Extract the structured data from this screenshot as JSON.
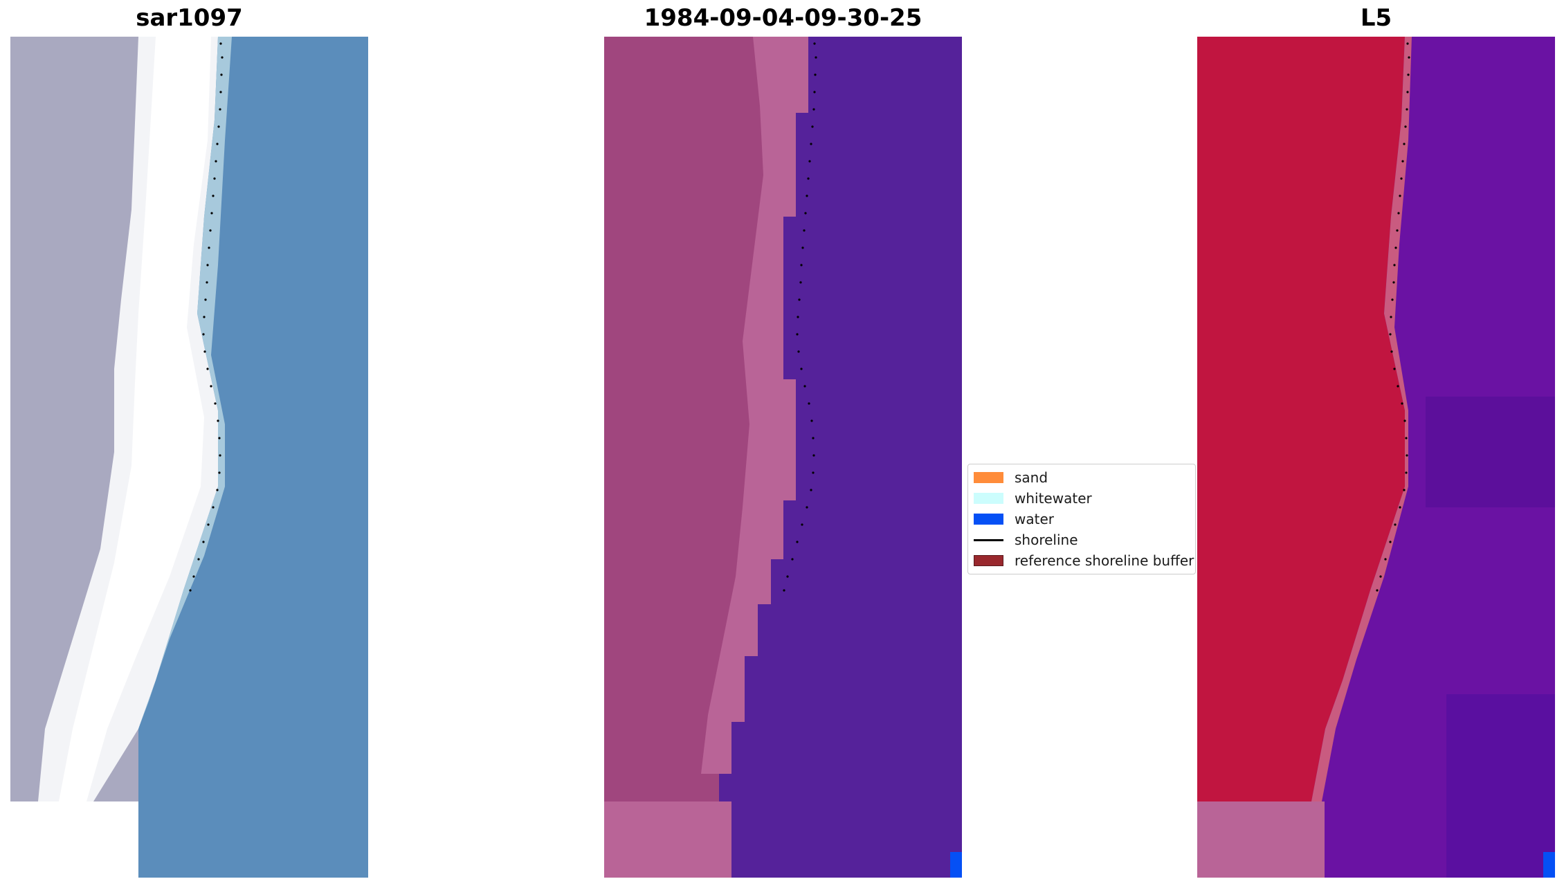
{
  "panels": [
    {
      "title": "sar1097"
    },
    {
      "title": "1984-09-04-09-30-25"
    },
    {
      "title": "L5"
    }
  ],
  "legend": {
    "items": [
      {
        "label": "sand",
        "color": "#ff8c3a",
        "kind": "patch"
      },
      {
        "label": "whitewater",
        "color": "#ccfdfd",
        "kind": "patch"
      },
      {
        "label": "water",
        "color": "#0550f5",
        "kind": "patch"
      },
      {
        "label": "shoreline",
        "color": "#000000",
        "kind": "line"
      },
      {
        "label": "reference shoreline buffer",
        "color": "#99282d",
        "kind": "patch"
      }
    ]
  },
  "colors": {
    "rgb_land": "#a9a9c0",
    "rgb_surf": "#ffffff",
    "rgb_water": "#5b8dbb",
    "class_land": "#a0467e",
    "class_sand_overlay": "#b96497",
    "class_water": "#55229a",
    "class_water_pixel": "#0550f5",
    "l5_land": "#c11540",
    "l5_water": "#6a12a3",
    "l5_nodata": "#b96497"
  }
}
